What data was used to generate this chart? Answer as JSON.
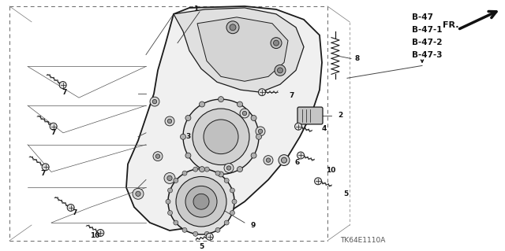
{
  "bg_color": "#ffffff",
  "fig_width": 6.4,
  "fig_height": 3.19,
  "dpi": 100,
  "ref_codes": [
    "B-47",
    "B-47-1",
    "B-47-2",
    "B-47-3"
  ],
  "catalog_code": "TK64E1110A",
  "line_color": "#1a1a1a",
  "text_color": "#111111",
  "font_size_label": 6.5,
  "font_size_ref": 7.5,
  "font_size_catalog": 6.5,
  "font_size_fr": 8.0
}
